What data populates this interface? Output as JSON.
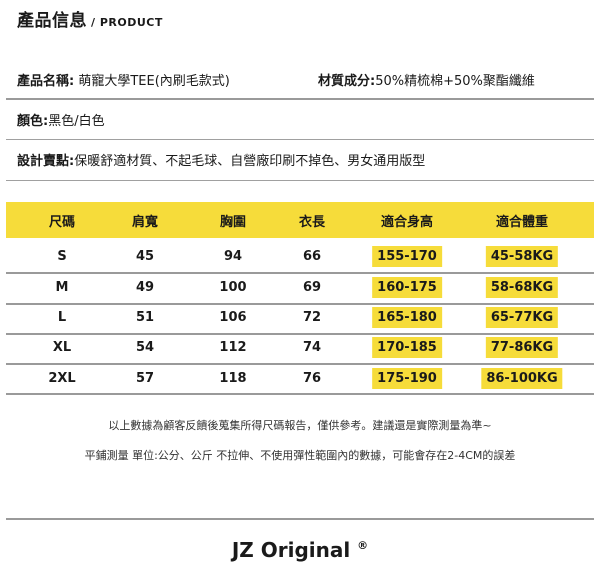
{
  "header": {
    "title": "產品信息",
    "subtitle": "/ PRODUCT"
  },
  "info": {
    "name_label": "產品名稱:",
    "name_value": " 萌寵大學TEE(內刷毛款式)",
    "material_label": "材質成分:",
    "material_value": "50%精梳棉+50%聚酯纖維",
    "color_label": "顏色:",
    "color_value": "黑色/白色",
    "design_label": "設計賣點:",
    "design_value": "保暖舒適材質、不起毛球、自營廠印刷不掉色、男女通用版型"
  },
  "table": {
    "headers": [
      "尺碼",
      "肩寬",
      "胸圍",
      "衣長",
      "適合身高",
      "適合體重"
    ],
    "rows": [
      [
        "S",
        "45",
        "94",
        "66",
        "155-170",
        "45-58KG"
      ],
      [
        "M",
        "49",
        "100",
        "69",
        "160-175",
        "58-68KG"
      ],
      [
        "L",
        "51",
        "106",
        "72",
        "165-180",
        "65-77KG"
      ],
      [
        "XL",
        "54",
        "112",
        "74",
        "170-185",
        "77-86KG"
      ],
      [
        "2XL",
        "57",
        "118",
        "76",
        "175-190",
        "86-100KG"
      ]
    ],
    "highlight_color": "#f6dc3a"
  },
  "notes": [
    "以上數據為顧客反饋後蒐集所得尺碼報告，僅供參考。建議還是實際測量為準~",
    "平鋪測量  單位:公分、公斤  不拉伸、不使用彈性範圍內的數據，可能會存在2-4CM的誤差"
  ],
  "brand": {
    "name": "JZ Original",
    "mark": "®"
  }
}
